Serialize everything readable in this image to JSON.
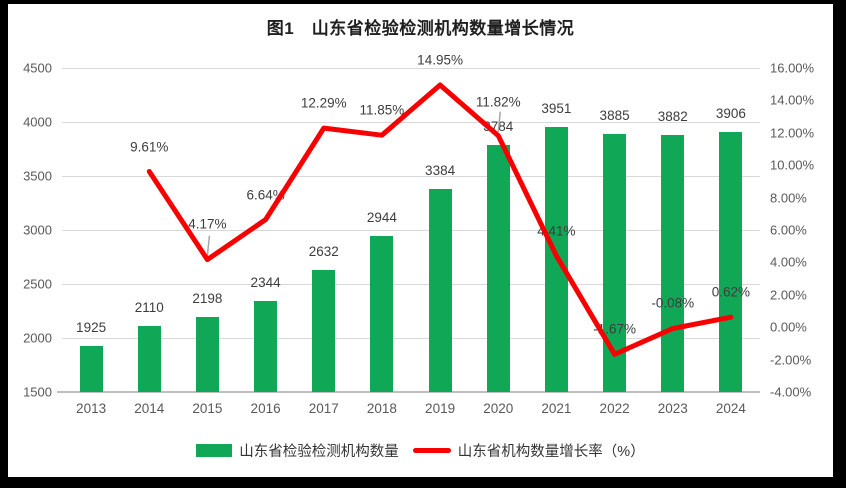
{
  "title": "图1　山东省检验检测机构数量增长情况",
  "legend": {
    "bars_label": "山东省检验检测机构数量",
    "line_label": "山东省机构数量增长率（%）"
  },
  "colors": {
    "bar": "#10A857",
    "line": "#F90000",
    "grid": "#D9D9D9",
    "axis_line": "#BFBFBF",
    "tick_text": "#595959",
    "data_label_text": "#3D3D3D",
    "leader": "#A6A6A6",
    "background": "#FFFFFF",
    "frame_border": "#000000"
  },
  "chart_data": {
    "type": "bar",
    "subtype": "combo-bar-line-dual-axis",
    "title": "图1　山东省检验检测机构数量增长情况",
    "categories": [
      "2013",
      "2014",
      "2015",
      "2016",
      "2017",
      "2018",
      "2019",
      "2020",
      "2021",
      "2022",
      "2023",
      "2024"
    ],
    "series": [
      {
        "name": "山东省检验检测机构数量",
        "type": "bar",
        "axis": "left",
        "values": [
          1925,
          2110,
          2198,
          2344,
          2632,
          2944,
          3384,
          3784,
          3951,
          3885,
          3882,
          3906
        ],
        "value_labels": [
          "1925",
          "2110",
          "2198",
          "2344",
          "2632",
          "2944",
          "3384",
          "3784",
          "3951",
          "3885",
          "3882",
          "3906"
        ]
      },
      {
        "name": "山东省机构数量增长率（%）",
        "type": "line",
        "axis": "right",
        "values": [
          null,
          9.61,
          4.17,
          6.64,
          12.29,
          11.85,
          14.95,
          11.82,
          4.41,
          -1.67,
          -0.08,
          0.62
        ],
        "value_labels": [
          null,
          "9.61%",
          "4.17%",
          "6.64%",
          "12.29%",
          "11.85%",
          "14.95%",
          "11.82%",
          "4.41%",
          "-1.67%",
          "-0.08%",
          "0.62%"
        ]
      }
    ],
    "left_axis": {
      "min": 1500,
      "max": 4500,
      "step": 500,
      "tick_labels": [
        "1500",
        "2000",
        "2500",
        "3000",
        "3500",
        "4000",
        "4500"
      ]
    },
    "right_axis": {
      "min": -4,
      "max": 16,
      "step": 2,
      "tick_labels": [
        "-4.00%",
        "-2.00%",
        "0.00%",
        "2.00%",
        "4.00%",
        "6.00%",
        "8.00%",
        "10.00%",
        "12.00%",
        "14.00%",
        "16.00%"
      ]
    },
    "grid": true,
    "legend_position": "bottom"
  }
}
